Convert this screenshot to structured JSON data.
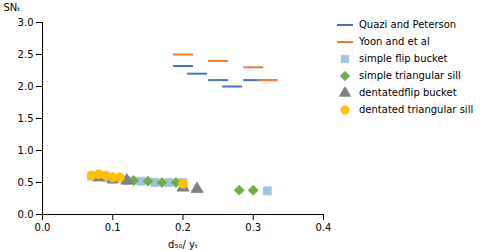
{
  "chart_data": {
    "type": "scatter",
    "xlabel": "d₅₀/ yₜ",
    "ylabel": "SNₜ",
    "xlim": [
      0,
      0.4
    ],
    "ylim": [
      0,
      3
    ],
    "xticks": [
      {
        "value": 0,
        "label": "0.0"
      },
      0.1,
      0.2,
      0.3,
      0.4
    ],
    "yticks": [
      {
        "value": 0,
        "label": "0.0"
      },
      0.5,
      {
        "value": 1.0,
        "label": "1.0"
      },
      1.5,
      {
        "value": 2.0,
        "label": "2.0"
      },
      2.5,
      {
        "value": 3.0,
        "label": "3.0"
      }
    ],
    "grid": false,
    "legend": "right",
    "series": [
      {
        "name": "Quazi and Peterson",
        "color": "#4472c4",
        "marker": "dash",
        "x": [
          0.2,
          0.22,
          0.25,
          0.27,
          0.3,
          0.32
        ],
        "values": [
          2.32,
          2.2,
          2.1,
          2.0,
          2.1,
          2.1
        ]
      },
      {
        "name": "Yoon and et al",
        "color": "#ed7d31",
        "marker": "dash",
        "x": [
          0.2,
          0.25,
          0.3,
          0.32
        ],
        "values": [
          2.5,
          2.4,
          2.3,
          2.1
        ]
      },
      {
        "name": "simple flip bucket",
        "color": "#9dc3e6",
        "marker": "square",
        "x": [
          0.07,
          0.09,
          0.1,
          0.12,
          0.14,
          0.16,
          0.18,
          0.2,
          0.32
        ],
        "values": [
          0.6,
          0.58,
          0.55,
          0.53,
          0.52,
          0.5,
          0.5,
          0.5,
          0.37
        ]
      },
      {
        "name": "simple triangular sill",
        "color": "#70ad47",
        "marker": "diamond",
        "x": [
          0.13,
          0.15,
          0.17,
          0.19,
          0.28,
          0.3
        ],
        "values": [
          0.53,
          0.52,
          0.5,
          0.5,
          0.38,
          0.38
        ]
      },
      {
        "name": "dentatedflip bucket",
        "color": "#808080",
        "marker": "triangle",
        "x": [
          0.08,
          0.1,
          0.12,
          0.2,
          0.22
        ],
        "values": [
          0.58,
          0.55,
          0.53,
          0.42,
          0.4
        ]
      },
      {
        "name": "dentated triangular sill",
        "color": "#ffc000",
        "marker": "circle",
        "x": [
          0.07,
          0.08,
          0.09,
          0.1,
          0.11,
          0.2
        ],
        "values": [
          0.61,
          0.63,
          0.61,
          0.58,
          0.58,
          0.48
        ]
      }
    ]
  }
}
